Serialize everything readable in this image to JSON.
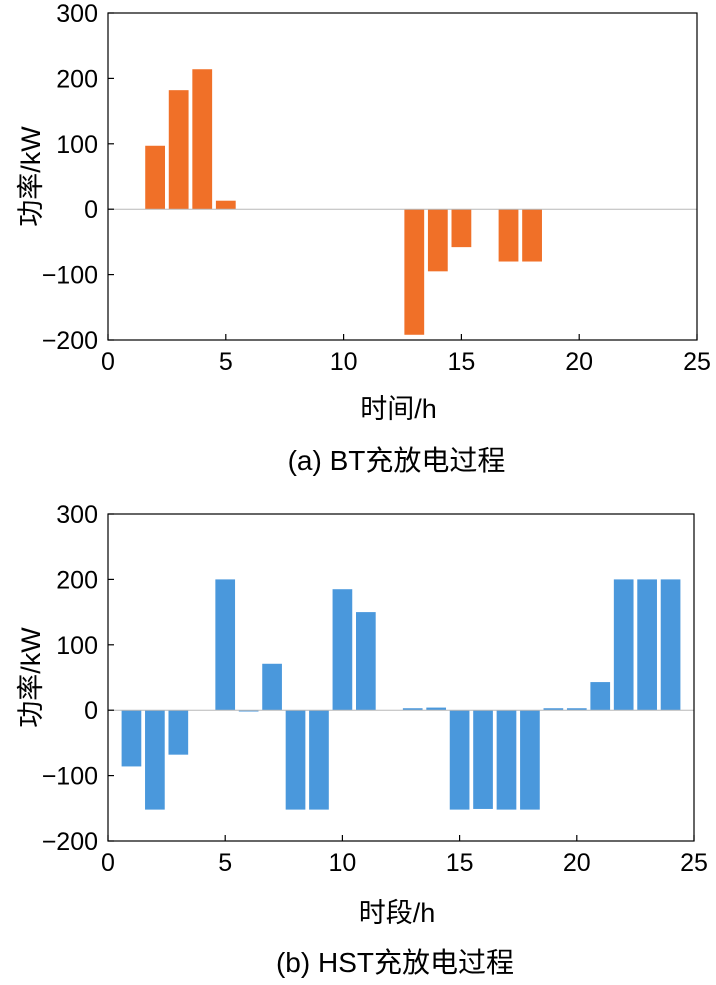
{
  "chart_data": [
    {
      "type": "bar",
      "caption": "(a) BT充放电过程",
      "xlabel": "时间/h",
      "ylabel": "功率/kW",
      "xlim": [
        0,
        25
      ],
      "ylim": [
        -200,
        300
      ],
      "xticks": [
        "0",
        "5",
        "10",
        "15",
        "20",
        "25"
      ],
      "yticks": [
        "300",
        "200",
        "100",
        "0",
        "−100",
        "−200"
      ],
      "color": "#f07028",
      "x": [
        2,
        3,
        4,
        5,
        13,
        14,
        15,
        17,
        18
      ],
      "values": [
        97,
        182,
        214,
        13,
        -192,
        -95,
        -58,
        -80,
        -80
      ]
    },
    {
      "type": "bar",
      "caption": "(b) HST充放电过程",
      "xlabel": "时段/h",
      "ylabel": "功率/kW",
      "xlim": [
        0,
        25
      ],
      "ylim": [
        -200,
        300
      ],
      "xticks": [
        "0",
        "5",
        "10",
        "15",
        "20",
        "25"
      ],
      "yticks": [
        "300",
        "200",
        "100",
        "0",
        "−100",
        "−200"
      ],
      "color": "#4a98dc",
      "x": [
        1,
        2,
        3,
        5,
        6,
        7,
        8,
        9,
        10,
        11,
        13,
        14,
        15,
        16,
        17,
        18,
        19,
        20,
        21,
        22,
        23,
        24
      ],
      "values": [
        -86,
        -152,
        -68,
        200,
        -2,
        71,
        -152,
        -152,
        185,
        150,
        3,
        4,
        -152,
        -151,
        -152,
        -152,
        3,
        3,
        43,
        200,
        200,
        200
      ]
    }
  ]
}
